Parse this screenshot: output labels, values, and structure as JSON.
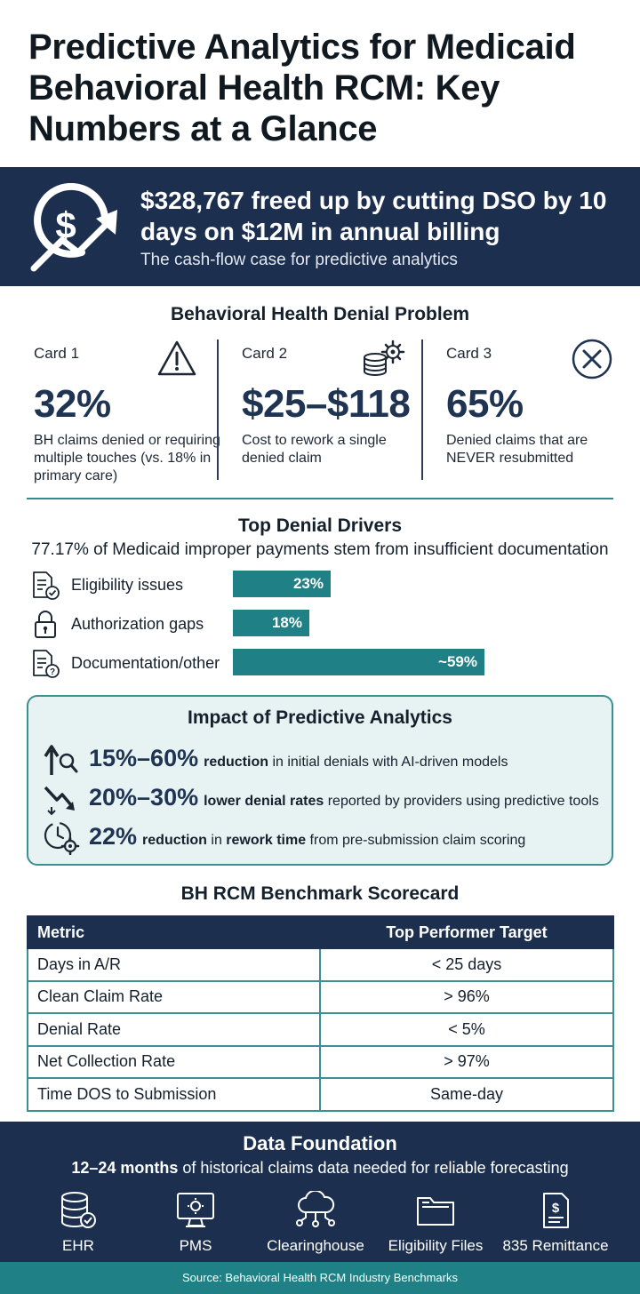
{
  "title": "Predictive Analytics for Medicaid Behavioral Health RCM: Key Numbers at a Glance",
  "hero": {
    "headline": "$328,767 freed up by cutting DSO by 10 days on $12M in annual billing",
    "subtitle": "The cash-flow case for predictive analytics",
    "icon": "dollar-growth-icon"
  },
  "denial_problem": {
    "title": "Behavioral Health Denial Problem",
    "cards": [
      {
        "label": "Card 1",
        "value": "32%",
        "desc": "BH claims denied or requiring multiple touches (vs. 18% in primary care)",
        "icon": "warning-icon"
      },
      {
        "label": "Card 2",
        "value": "$25–$118",
        "desc": "Cost to rework a single denied claim",
        "icon": "coins-gear-icon"
      },
      {
        "label": "Card 3",
        "value": "65%",
        "desc": "Denied claims that are NEVER resubmitted",
        "icon": "x-circle-icon"
      }
    ]
  },
  "drivers": {
    "title": "Top Denial Drivers",
    "subtitle": "77.17% of Medicaid improper payments stem from insufficient documentation",
    "items": [
      {
        "label": "Eligibility issues",
        "value_text": "23%",
        "value": 23,
        "icon": "document-check-icon"
      },
      {
        "label": "Authorization gaps",
        "value_text": "18%",
        "value": 18,
        "icon": "lock-icon"
      },
      {
        "label": "Documentation/other",
        "value_text": "~59%",
        "value": 59,
        "icon": "document-question-icon"
      }
    ]
  },
  "impact": {
    "title": "Impact of Predictive Analytics",
    "rows": [
      {
        "big": "15%–60%",
        "bold": "reduction",
        "rest": " in initial denials with AI-driven models",
        "icon": "arrow-up-search-icon"
      },
      {
        "big": "20%–30%",
        "bold": "lower denial rates",
        "rest": " reported by providers using predictive tools",
        "icon": "trend-down-icon"
      },
      {
        "big": "22%",
        "bold": "reduction",
        "mid": " in ",
        "bold2": "rework time",
        "rest": " from pre-submission claim scoring",
        "icon": "clock-gear-icon"
      }
    ]
  },
  "scorecard": {
    "title": "BH RCM Benchmark Scorecard",
    "headers": [
      "Metric",
      "Top Performer Target"
    ],
    "rows": [
      [
        "Days in A/R",
        "< 25 days"
      ],
      [
        "Clean Claim Rate",
        "> 96%"
      ],
      [
        "Denial Rate",
        "< 5%"
      ],
      [
        "Net Collection Rate",
        "> 97%"
      ],
      [
        "Time DOS to Submission",
        "Same-day"
      ]
    ]
  },
  "foundation": {
    "title": "Data Foundation",
    "sub_bold": "12–24 months",
    "sub_rest": " of historical claims data needed for reliable forecasting",
    "sources": [
      {
        "label": "EHR",
        "icon": "database-check-icon"
      },
      {
        "label": "PMS",
        "icon": "monitor-gear-icon"
      },
      {
        "label": "Clearinghouse",
        "icon": "cloud-network-icon"
      },
      {
        "label": "Eligibility Files",
        "icon": "folder-icon"
      },
      {
        "label": "835 Remittance",
        "icon": "receipt-dollar-icon"
      }
    ]
  },
  "footer": "Source: Behavioral Health RCM Industry Benchmarks",
  "colors": {
    "navy": "#1c2f4f",
    "teal": "#1f8186",
    "light_teal": "#e7f3f3"
  }
}
